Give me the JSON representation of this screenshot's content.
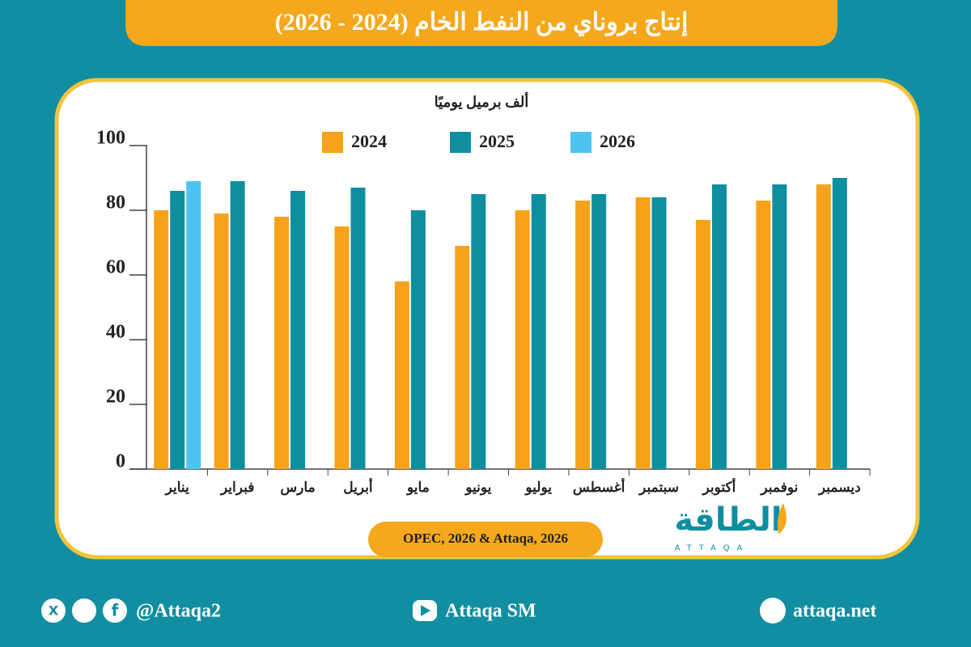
{
  "chart_data": {
    "type": "bar",
    "title": "إنتاج بروناي من النفط الخام (2024 - 2026)",
    "y_label": "ألف برميل يوميًا",
    "source": "OPEC, 2026 & Attaqa, 2026",
    "categories": [
      "يناير",
      "فبراير",
      "مارس",
      "أبريل",
      "مايو",
      "يونيو",
      "يوليو",
      "أغسطس",
      "سبتمبر",
      "أكتوبر",
      "نوفمبر",
      "ديسمبر"
    ],
    "series": [
      {
        "name": "2024",
        "color": "#f7a21b",
        "values": [
          80,
          79,
          78,
          75,
          58,
          69,
          80,
          83,
          84,
          77,
          83,
          88
        ]
      },
      {
        "name": "2025",
        "color": "#0e8fa0",
        "values": [
          86,
          89,
          86,
          87,
          80,
          85,
          85,
          85,
          84,
          88,
          88,
          90
        ]
      },
      {
        "name": "2026",
        "color": "#4fc3f0",
        "values": [
          89,
          null,
          null,
          null,
          null,
          null,
          null,
          null,
          null,
          null,
          null,
          null
        ]
      }
    ],
    "ylim": [
      0,
      100
    ],
    "yticks": [
      0,
      20,
      40,
      60,
      80,
      100
    ],
    "grid": false,
    "legend": "top"
  },
  "logo": {
    "name": "الطاقة",
    "latin": "ATTAQA"
  },
  "footer": {
    "social": "@Attaqa2",
    "youtube": "Attaqa SM",
    "site": "attaqa.net"
  }
}
